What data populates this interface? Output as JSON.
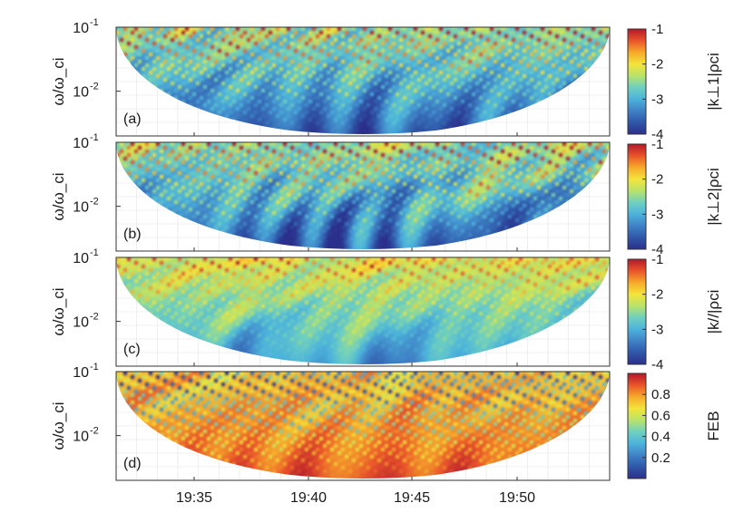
{
  "figure": {
    "colormap": [
      "#2b2f8c",
      "#2f57a8",
      "#3f82c6",
      "#4cb3dc",
      "#6fd0c0",
      "#b9e36a",
      "#f4e43a",
      "#f6a92b",
      "#e9542a",
      "#b2182b"
    ]
  },
  "chart_data": [
    {
      "type": "heatmap",
      "panel_label": "(a)",
      "ylabel": "ω/ω_ci",
      "y_scale": "log",
      "ylim": [
        0.002,
        0.1
      ],
      "y_ticks": [
        {
          "base": "10",
          "exp": "-1",
          "value": 0.1
        },
        {
          "base": "10",
          "exp": "-2",
          "value": 0.01
        }
      ],
      "x_ticks": [
        "19:35",
        "19:40",
        "19:45",
        "19:50"
      ],
      "xlim": [
        "19:30:40",
        "19:54:50"
      ],
      "colorbar": {
        "label": "|k⊥1|ρci",
        "ticks": [
          "-1",
          "-2",
          "-3",
          "-4"
        ],
        "range": [
          -4,
          -1
        ]
      },
      "regime": "k"
    },
    {
      "type": "heatmap",
      "panel_label": "(b)",
      "ylabel": "ω/ω_ci",
      "y_scale": "log",
      "ylim": [
        0.002,
        0.1
      ],
      "y_ticks": [
        {
          "base": "10",
          "exp": "-1",
          "value": 0.1
        },
        {
          "base": "10",
          "exp": "-2",
          "value": 0.01
        }
      ],
      "x_ticks": [
        "19:35",
        "19:40",
        "19:45",
        "19:50"
      ],
      "xlim": [
        "19:30:40",
        "19:54:50"
      ],
      "colorbar": {
        "label": "|k⊥2|ρci",
        "ticks": [
          "-1",
          "-2",
          "-3",
          "-4"
        ],
        "range": [
          -4,
          -1
        ]
      },
      "regime": "k"
    },
    {
      "type": "heatmap",
      "panel_label": "(c)",
      "ylabel": "ω/ω_ci",
      "y_scale": "log",
      "ylim": [
        0.002,
        0.1
      ],
      "y_ticks": [
        {
          "base": "10",
          "exp": "-1",
          "value": 0.1
        },
        {
          "base": "10",
          "exp": "-2",
          "value": 0.01
        }
      ],
      "x_ticks": [
        "19:35",
        "19:40",
        "19:45",
        "19:50"
      ],
      "xlim": [
        "19:30:40",
        "19:54:50"
      ],
      "colorbar": {
        "label": "|k//|ρci",
        "ticks": [
          "-1",
          "-2",
          "-3",
          "-4"
        ],
        "range": [
          -4,
          -1
        ]
      },
      "regime": "kpar"
    },
    {
      "type": "heatmap",
      "panel_label": "(d)",
      "ylabel": "ω/ω_ci",
      "y_scale": "log",
      "ylim": [
        0.002,
        0.1
      ],
      "y_ticks": [
        {
          "base": "10",
          "exp": "-1",
          "value": 0.1
        },
        {
          "base": "10",
          "exp": "-2",
          "value": 0.01
        }
      ],
      "x_ticks": [
        "19:35",
        "19:40",
        "19:45",
        "19:50"
      ],
      "xlim": [
        "19:30:40",
        "19:54:50"
      ],
      "colorbar": {
        "label": "FEB",
        "ticks": [
          "0.8",
          "0.6",
          "0.4",
          "0.2"
        ],
        "range": [
          0,
          1
        ]
      },
      "regime": "feb"
    }
  ]
}
